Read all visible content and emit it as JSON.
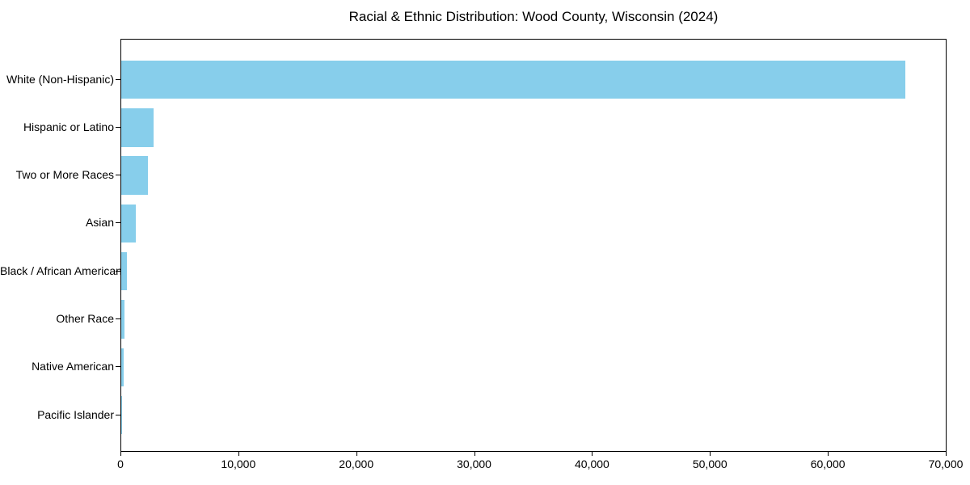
{
  "chart_data": {
    "type": "bar",
    "orientation": "horizontal",
    "title": "Racial & Ethnic Distribution: Wood County, Wisconsin (2024)",
    "categories": [
      "White (Non-Hispanic)",
      "Hispanic or Latino",
      "Two or More Races",
      "Asian",
      "Black / African American",
      "Other Race",
      "Native American",
      "Pacific Islander"
    ],
    "values": [
      66600,
      2760,
      2280,
      1210,
      510,
      290,
      180,
      30
    ],
    "xlabel": "",
    "ylabel": "",
    "xlim": [
      0,
      70000
    ],
    "x_ticks": [
      {
        "value": 0,
        "label": "0"
      },
      {
        "value": 10000,
        "label": "10,000"
      },
      {
        "value": 20000,
        "label": "20,000"
      },
      {
        "value": 30000,
        "label": "30,000"
      },
      {
        "value": 40000,
        "label": "40,000"
      },
      {
        "value": 50000,
        "label": "50,000"
      },
      {
        "value": 60000,
        "label": "60,000"
      },
      {
        "value": 70000,
        "label": "70,000"
      }
    ],
    "bar_color": "#87CEEB",
    "spine_color": "#000000",
    "grid": false,
    "legend": null
  }
}
